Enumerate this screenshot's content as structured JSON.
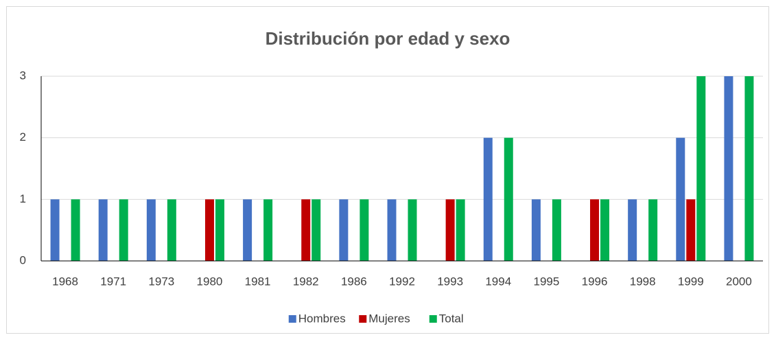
{
  "chart_data": {
    "type": "bar",
    "title": "Distribución por edad y sexo",
    "categories": [
      "1968",
      "1971",
      "1973",
      "1980",
      "1981",
      "1982",
      "1986",
      "1992",
      "1993",
      "1994",
      "1995",
      "1996",
      "1998",
      "1999",
      "2000"
    ],
    "series": [
      {
        "name": "Hombres",
        "color": "#4472c4",
        "values": [
          1,
          1,
          1,
          0,
          1,
          0,
          1,
          1,
          0,
          2,
          1,
          0,
          1,
          2,
          3
        ]
      },
      {
        "name": "Mujeres",
        "color": "#c00000",
        "values": [
          0,
          0,
          0,
          1,
          0,
          1,
          0,
          0,
          1,
          0,
          0,
          1,
          0,
          1,
          0
        ]
      },
      {
        "name": "Total",
        "color": "#00b050",
        "values": [
          1,
          1,
          1,
          1,
          1,
          1,
          1,
          1,
          1,
          2,
          1,
          1,
          1,
          3,
          3
        ]
      }
    ],
    "ylim": [
      0,
      3
    ],
    "yticks": [
      0,
      1,
      2,
      3
    ],
    "grid": true,
    "legend": "bottom"
  }
}
